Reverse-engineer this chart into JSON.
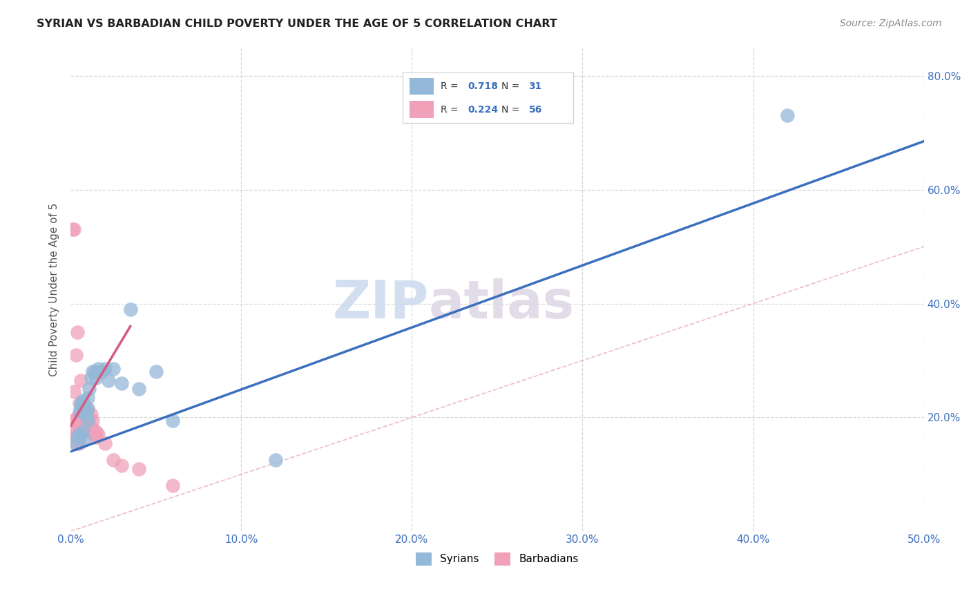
{
  "title": "SYRIAN VS BARBADIAN CHILD POVERTY UNDER THE AGE OF 5 CORRELATION CHART",
  "source": "Source: ZipAtlas.com",
  "ylabel": "Child Poverty Under the Age of 5",
  "xlim": [
    0.0,
    0.5
  ],
  "ylim": [
    0.0,
    0.85
  ],
  "xticks": [
    0.0,
    0.1,
    0.2,
    0.3,
    0.4,
    0.5
  ],
  "xtick_labels": [
    "0.0%",
    "10.0%",
    "20.0%",
    "30.0%",
    "40.0%",
    "50.0%"
  ],
  "yticks": [
    0.0,
    0.2,
    0.4,
    0.6,
    0.8
  ],
  "ytick_labels": [
    "",
    "20.0%",
    "40.0%",
    "60.0%",
    "80.0%"
  ],
  "syrian_color": "#93b8d8",
  "barbadian_color": "#f0a0b8",
  "syrian_R": 0.718,
  "syrian_N": 31,
  "barbadian_R": 0.224,
  "barbadian_N": 56,
  "legend_syrian": "Syrians",
  "legend_barbadian": "Barbadians",
  "blue_line": [
    0.0,
    0.14,
    0.5,
    0.685
  ],
  "pink_line": [
    0.0,
    0.185,
    0.035,
    0.36
  ],
  "ref_line": [
    0.0,
    0.0,
    0.85,
    0.85
  ],
  "syrian_points_x": [
    0.003,
    0.004,
    0.005,
    0.005,
    0.006,
    0.006,
    0.007,
    0.007,
    0.008,
    0.008,
    0.009,
    0.01,
    0.01,
    0.01,
    0.011,
    0.012,
    0.013,
    0.014,
    0.015,
    0.016,
    0.018,
    0.02,
    0.022,
    0.025,
    0.03,
    0.035,
    0.04,
    0.05,
    0.06,
    0.12,
    0.42
  ],
  "syrian_points_y": [
    0.155,
    0.165,
    0.17,
    0.21,
    0.22,
    0.225,
    0.23,
    0.175,
    0.16,
    0.22,
    0.205,
    0.235,
    0.215,
    0.195,
    0.25,
    0.27,
    0.28,
    0.28,
    0.27,
    0.285,
    0.28,
    0.285,
    0.265,
    0.285,
    0.26,
    0.39,
    0.25,
    0.28,
    0.195,
    0.125,
    0.73
  ],
  "barbadian_points_x": [
    0.001,
    0.001,
    0.002,
    0.002,
    0.002,
    0.002,
    0.003,
    0.003,
    0.003,
    0.003,
    0.003,
    0.004,
    0.004,
    0.004,
    0.004,
    0.005,
    0.005,
    0.005,
    0.005,
    0.005,
    0.005,
    0.006,
    0.006,
    0.006,
    0.006,
    0.006,
    0.007,
    0.007,
    0.007,
    0.007,
    0.008,
    0.008,
    0.008,
    0.008,
    0.009,
    0.009,
    0.009,
    0.01,
    0.01,
    0.01,
    0.01,
    0.011,
    0.011,
    0.012,
    0.012,
    0.013,
    0.013,
    0.014,
    0.015,
    0.015,
    0.016,
    0.02,
    0.025,
    0.03,
    0.04,
    0.06
  ],
  "barbadian_points_y": [
    0.195,
    0.53,
    0.18,
    0.165,
    0.245,
    0.53,
    0.195,
    0.155,
    0.165,
    0.195,
    0.31,
    0.175,
    0.19,
    0.2,
    0.35,
    0.155,
    0.165,
    0.17,
    0.19,
    0.2,
    0.225,
    0.175,
    0.18,
    0.2,
    0.21,
    0.265,
    0.175,
    0.185,
    0.2,
    0.215,
    0.175,
    0.185,
    0.2,
    0.22,
    0.18,
    0.195,
    0.21,
    0.175,
    0.185,
    0.2,
    0.215,
    0.18,
    0.195,
    0.175,
    0.205,
    0.18,
    0.195,
    0.17,
    0.165,
    0.175,
    0.17,
    0.155,
    0.125,
    0.115,
    0.11,
    0.08
  ]
}
